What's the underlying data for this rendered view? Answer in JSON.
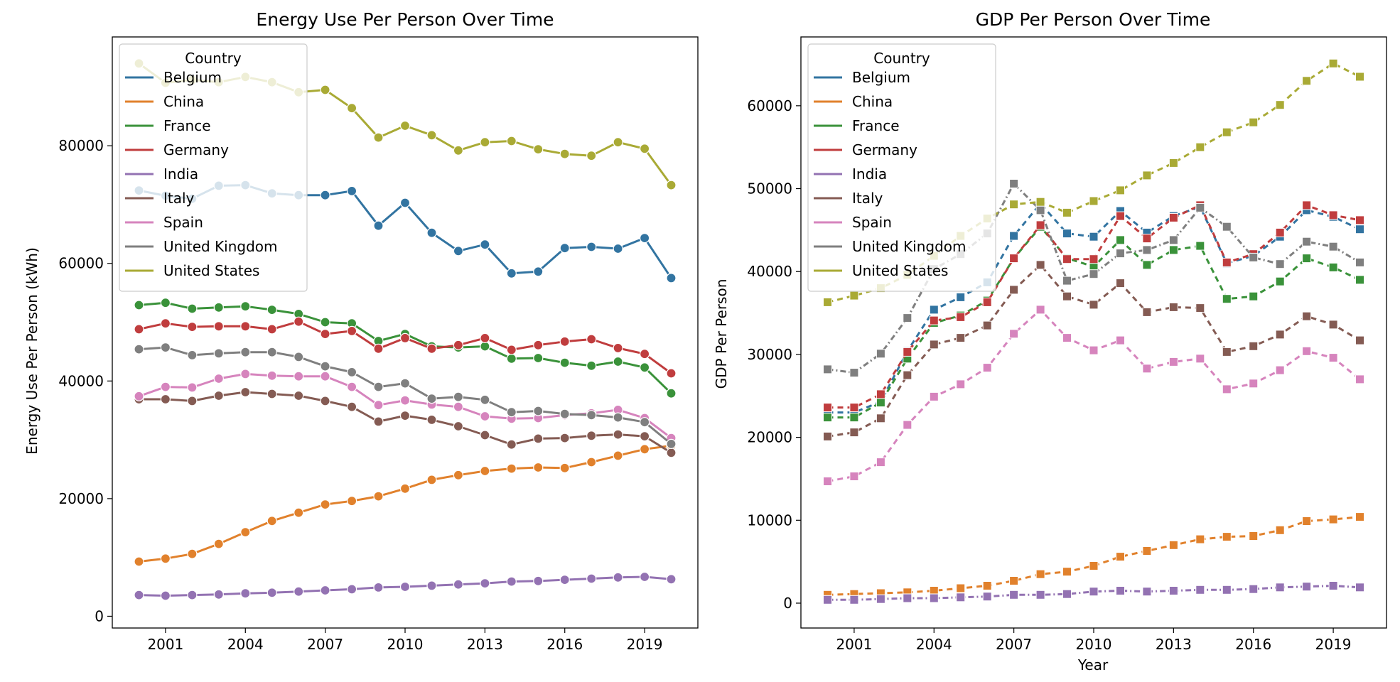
{
  "chart_data": [
    {
      "type": "line",
      "title": "Energy Use Per Person Over Time",
      "xlabel": "",
      "ylabel": "Energy Use Per Person (kWh)",
      "x": [
        2000,
        2001,
        2002,
        2003,
        2004,
        2005,
        2006,
        2007,
        2008,
        2009,
        2010,
        2011,
        2012,
        2013,
        2014,
        2015,
        2016,
        2017,
        2018,
        2019,
        2020
      ],
      "xticks": [
        2001,
        2004,
        2007,
        2010,
        2013,
        2016,
        2019
      ],
      "yticks": [
        0,
        20000,
        40000,
        60000,
        80000
      ],
      "ylim": [
        -2000,
        98500
      ],
      "marker": "circle",
      "legend_title": "Country",
      "legend_position": "upper-left",
      "grid": false,
      "series": [
        {
          "name": "Belgium",
          "color": "#3274a1",
          "values": [
            72400,
            71500,
            71000,
            73200,
            73300,
            71900,
            71600,
            71600,
            72300,
            66400,
            70300,
            65200,
            62100,
            63200,
            58300,
            58600,
            62600,
            62800,
            62500,
            64300,
            57500
          ]
        },
        {
          "name": "China",
          "color": "#e1812c",
          "values": [
            9300,
            9800,
            10600,
            12300,
            14300,
            16200,
            17600,
            19000,
            19600,
            20400,
            21700,
            23200,
            24000,
            24700,
            25100,
            25300,
            25200,
            26200,
            27300,
            28400,
            29000
          ]
        },
        {
          "name": "France",
          "color": "#3a923a",
          "values": [
            52900,
            53300,
            52300,
            52500,
            52700,
            52100,
            51400,
            50000,
            49800,
            46800,
            48000,
            45900,
            45700,
            45900,
            43800,
            43900,
            43100,
            42600,
            43300,
            42300,
            37900
          ]
        },
        {
          "name": "Germany",
          "color": "#c03d3e",
          "values": [
            48800,
            49800,
            49200,
            49300,
            49300,
            48800,
            50100,
            48000,
            48500,
            45500,
            47300,
            45500,
            46100,
            47300,
            45300,
            46100,
            46700,
            47100,
            45600,
            44600,
            41300
          ]
        },
        {
          "name": "India",
          "color": "#9372b2",
          "values": [
            3600,
            3500,
            3600,
            3700,
            3900,
            4000,
            4200,
            4400,
            4600,
            4900,
            5000,
            5200,
            5400,
            5600,
            5900,
            6000,
            6200,
            6400,
            6600,
            6700,
            6300
          ]
        },
        {
          "name": "Italy",
          "color": "#845b53",
          "values": [
            36900,
            36900,
            36600,
            37500,
            38100,
            37800,
            37500,
            36600,
            35600,
            33100,
            34100,
            33400,
            32300,
            30800,
            29200,
            30200,
            30300,
            30700,
            30900,
            30600,
            27800
          ]
        },
        {
          "name": "Spain",
          "color": "#d684bd",
          "values": [
            37400,
            39000,
            38900,
            40400,
            41200,
            40900,
            40800,
            40800,
            39000,
            35900,
            36700,
            36000,
            35600,
            34000,
            33600,
            33700,
            34200,
            34500,
            35100,
            33700,
            30300
          ]
        },
        {
          "name": "United Kingdom",
          "color": "#7f7f7f",
          "values": [
            45400,
            45700,
            44400,
            44700,
            44900,
            44900,
            44100,
            42500,
            41500,
            39000,
            39600,
            37000,
            37300,
            36800,
            34700,
            34900,
            34400,
            34200,
            33800,
            33000,
            29300
          ]
        },
        {
          "name": "United States",
          "color": "#a9aa35",
          "values": [
            94000,
            90700,
            91200,
            90800,
            91700,
            90800,
            89100,
            89500,
            86400,
            81400,
            83400,
            81800,
            79200,
            80600,
            80800,
            79400,
            78600,
            78300,
            80600,
            79500,
            73300
          ]
        }
      ]
    },
    {
      "type": "line",
      "title": "GDP Per Person Over Time",
      "xlabel": "Year",
      "ylabel": "GDP Per Person",
      "x": [
        2000,
        2001,
        2002,
        2003,
        2004,
        2005,
        2006,
        2007,
        2008,
        2009,
        2010,
        2011,
        2012,
        2013,
        2014,
        2015,
        2016,
        2017,
        2018,
        2019,
        2020
      ],
      "xticks": [
        2001,
        2004,
        2007,
        2010,
        2013,
        2016,
        2019
      ],
      "yticks": [
        0,
        10000,
        20000,
        30000,
        40000,
        50000,
        60000
      ],
      "ylim": [
        -3000,
        68300
      ],
      "marker": "square",
      "legend_title": "Country",
      "legend_position": "upper-left",
      "grid": false,
      "series": [
        {
          "name": "Belgium",
          "color": "#3274a1",
          "dash": "8,6",
          "values": [
            23000,
            23000,
            24300,
            30400,
            35400,
            36900,
            38700,
            44300,
            48200,
            44600,
            44200,
            47300,
            44700,
            46700,
            47800,
            41000,
            41900,
            44200,
            47400,
            46600,
            45100
          ]
        },
        {
          "name": "China",
          "color": "#e1812c",
          "dash": "8,6",
          "values": [
            1000,
            1100,
            1200,
            1300,
            1500,
            1800,
            2100,
            2700,
            3500,
            3800,
            4500,
            5600,
            6300,
            7000,
            7700,
            8000,
            8100,
            8800,
            9900,
            10100,
            10400
          ]
        },
        {
          "name": "France",
          "color": "#3a923a",
          "dash": "8,6",
          "values": [
            22400,
            22400,
            24200,
            29500,
            33800,
            34700,
            36500,
            41600,
            45400,
            41600,
            40600,
            43800,
            40800,
            42600,
            43100,
            36700,
            37000,
            38800,
            41600,
            40500,
            39000
          ]
        },
        {
          "name": "Germany",
          "color": "#c03d3e",
          "dash": "8,6",
          "values": [
            23600,
            23600,
            25200,
            30300,
            34100,
            34500,
            36300,
            41600,
            45600,
            41500,
            41500,
            46700,
            44000,
            46500,
            48000,
            41100,
            42100,
            44700,
            48000,
            46800,
            46200
          ]
        },
        {
          "name": "India",
          "color": "#9372b2",
          "dash": "8,4,2,4",
          "values": [
            400,
            400,
            500,
            600,
            600,
            700,
            800,
            1000,
            1000,
            1100,
            1400,
            1500,
            1400,
            1500,
            1600,
            1600,
            1700,
            1900,
            2000,
            2100,
            1900
          ]
        },
        {
          "name": "Italy",
          "color": "#845b53",
          "dash": "8,6",
          "values": [
            20100,
            20600,
            22300,
            27500,
            31200,
            32000,
            33500,
            37800,
            40800,
            37000,
            36000,
            38600,
            35100,
            35700,
            35600,
            30300,
            31000,
            32400,
            34600,
            33600,
            31700
          ]
        },
        {
          "name": "Spain",
          "color": "#d684bd",
          "dash": "8,6",
          "values": [
            14700,
            15300,
            17000,
            21500,
            24900,
            26400,
            28400,
            32500,
            35400,
            32000,
            30500,
            31700,
            28300,
            29100,
            29500,
            25800,
            26500,
            28100,
            30400,
            29600,
            27000
          ]
        },
        {
          "name": "United Kingdom",
          "color": "#7f7f7f",
          "dash": "8,4,2,4",
          "values": [
            28200,
            27800,
            30100,
            34400,
            40300,
            42100,
            44600,
            50600,
            47400,
            38900,
            39700,
            42200,
            42600,
            43800,
            47700,
            45400,
            41700,
            40900,
            43600,
            43000,
            41100
          ]
        },
        {
          "name": "United States",
          "color": "#a9aa35",
          "dash": "8,6",
          "values": [
            36300,
            37100,
            38000,
            39600,
            41900,
            44300,
            46400,
            48100,
            48400,
            47100,
            48500,
            49800,
            51600,
            53100,
            55000,
            56800,
            58000,
            60100,
            63000,
            65100,
            63500
          ]
        }
      ]
    }
  ]
}
